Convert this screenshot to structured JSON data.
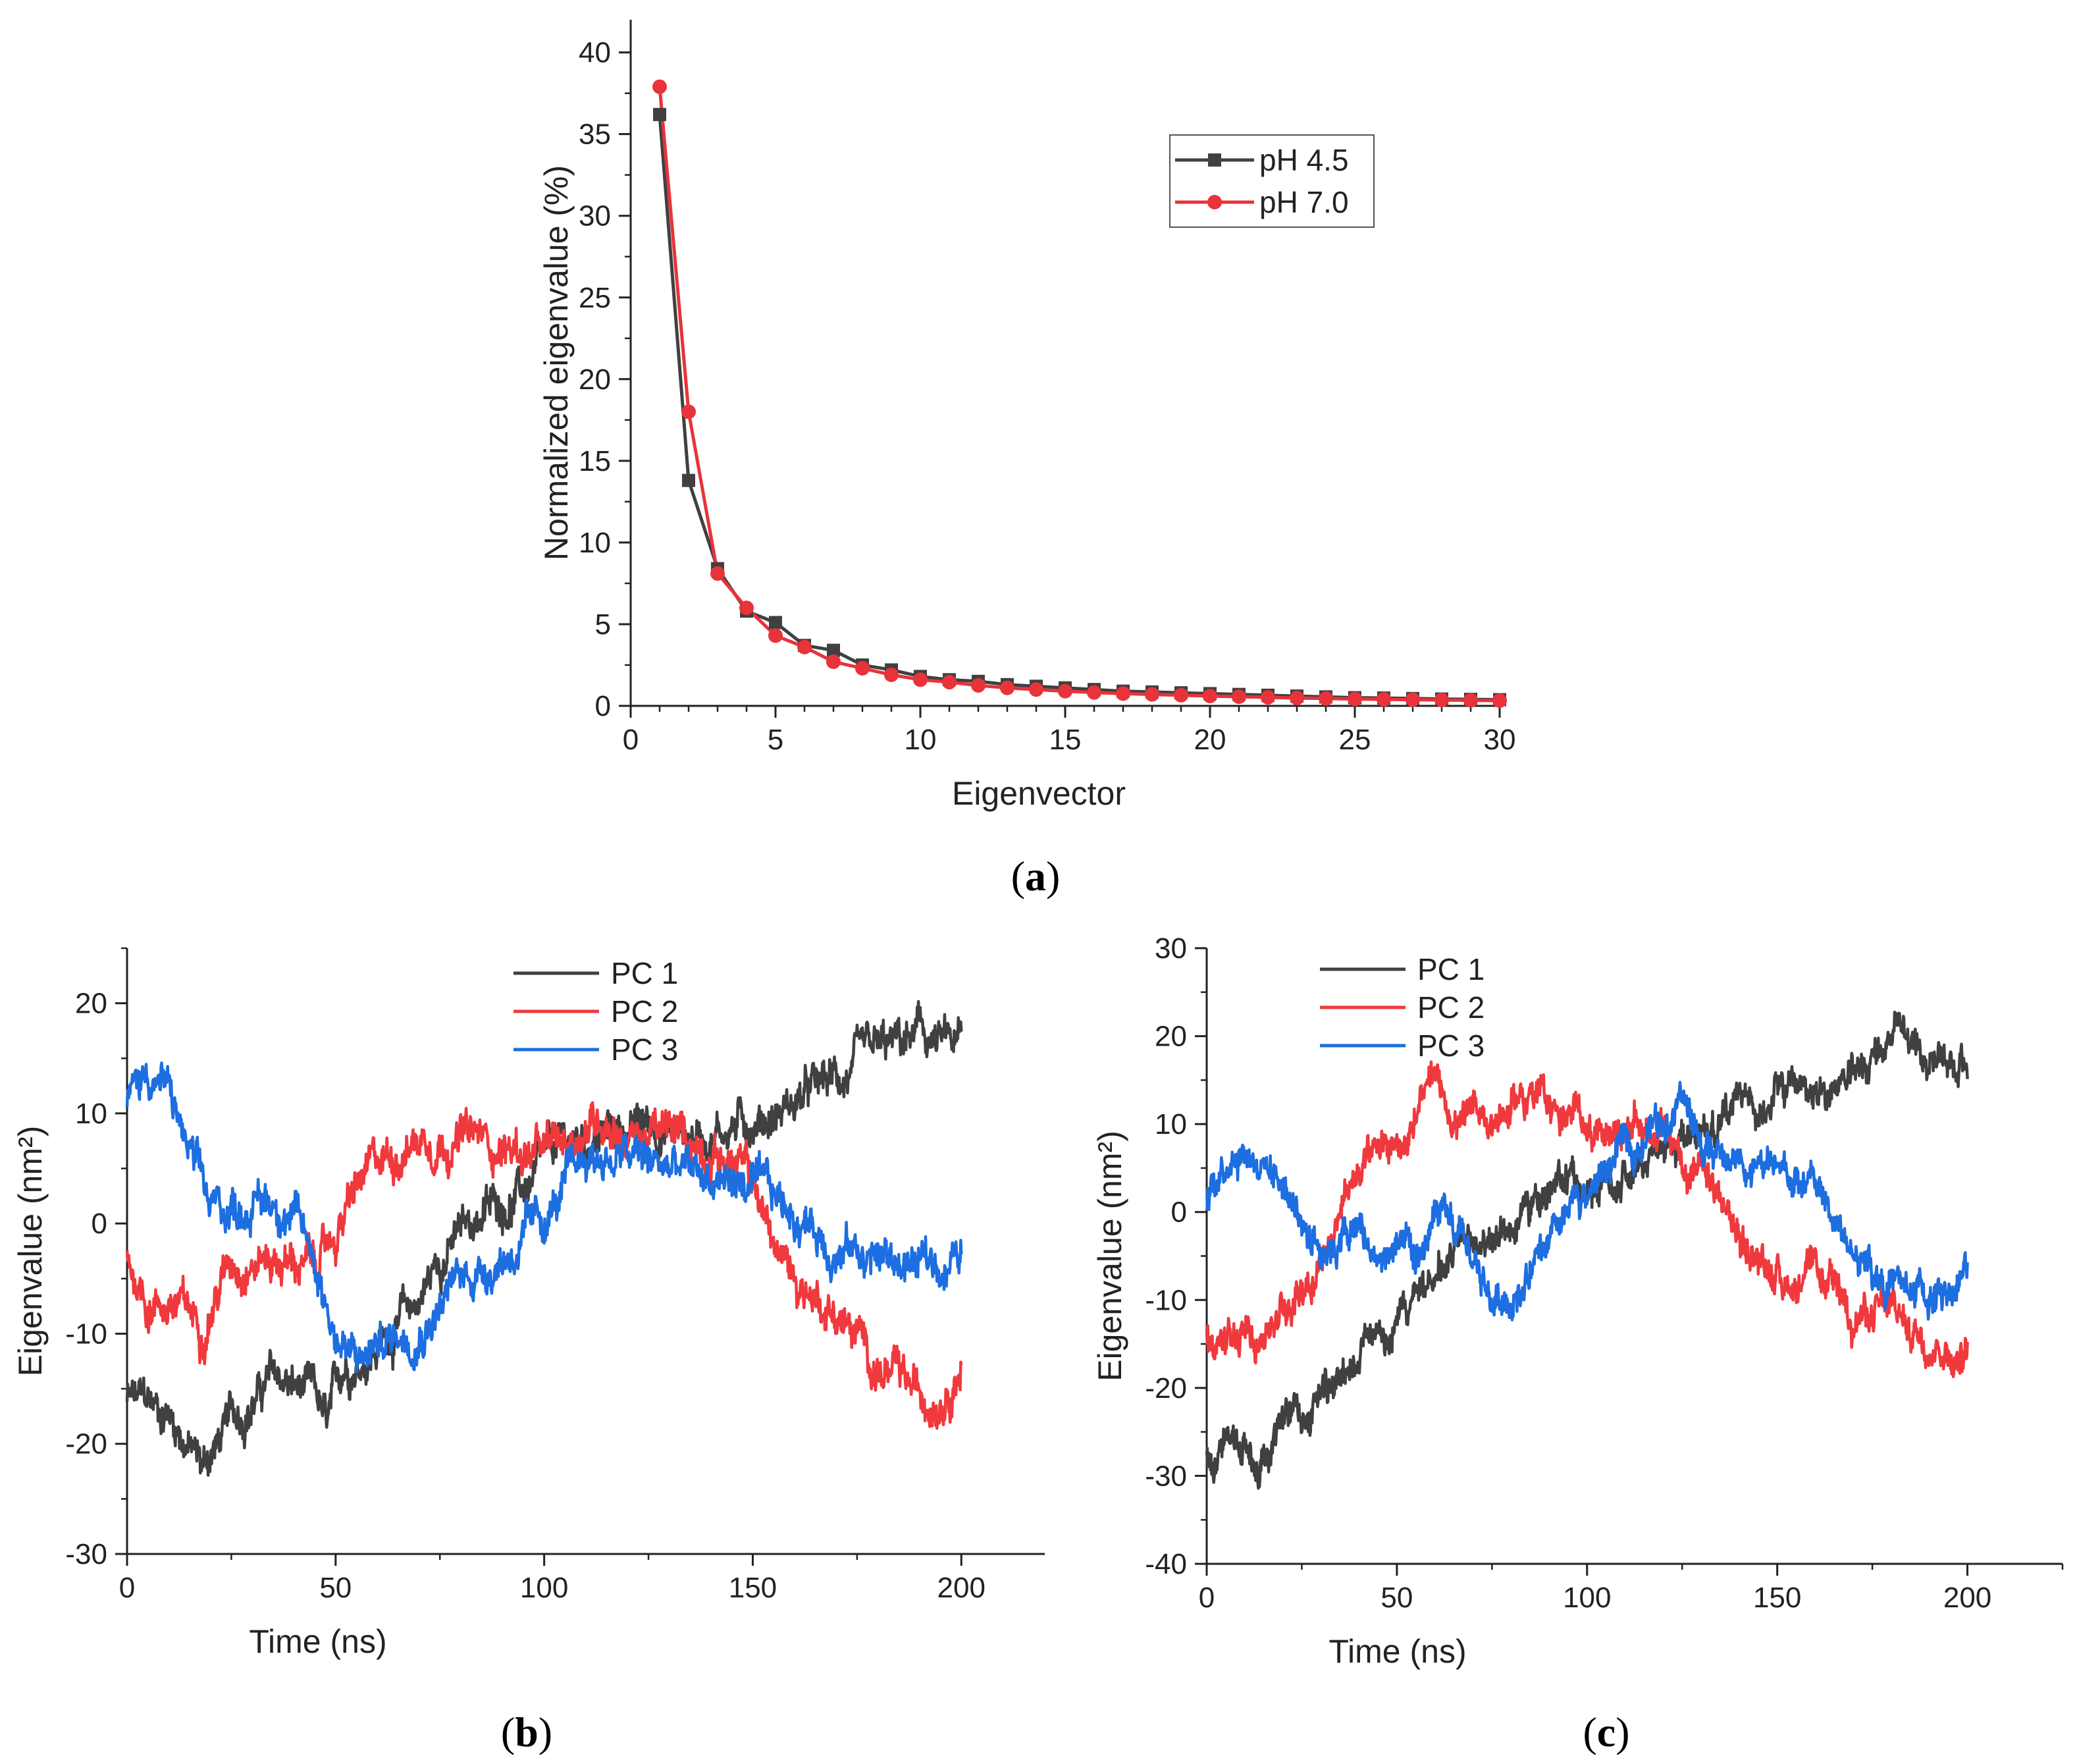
{
  "chart_data": [
    {
      "panel": "a",
      "type": "line",
      "xlabel": "Eigenvector",
      "ylabel": "Normalized eigenvalue (%)",
      "xlim": [
        0,
        30
      ],
      "ylim": [
        0,
        42
      ],
      "xticks": [
        0,
        5,
        10,
        15,
        20,
        25,
        30
      ],
      "yticks": [
        0,
        5,
        10,
        15,
        20,
        25,
        30,
        35,
        40
      ],
      "legend_position": "upper-right",
      "x": [
        1,
        2,
        3,
        4,
        5,
        6,
        7,
        8,
        9,
        10,
        11,
        12,
        13,
        14,
        15,
        16,
        17,
        18,
        19,
        20,
        21,
        22,
        23,
        24,
        25,
        26,
        27,
        28,
        29,
        30
      ],
      "series": [
        {
          "name": "pH 4.5",
          "color": "#404040",
          "marker": "square",
          "values": [
            36.2,
            13.8,
            8.4,
            5.8,
            5.1,
            3.7,
            3.4,
            2.5,
            2.2,
            1.8,
            1.6,
            1.5,
            1.3,
            1.2,
            1.1,
            1.0,
            0.9,
            0.85,
            0.8,
            0.75,
            0.7,
            0.65,
            0.6,
            0.55,
            0.5,
            0.48,
            0.45,
            0.42,
            0.4,
            0.38
          ]
        },
        {
          "name": "pH 7.0",
          "color": "#e8333a",
          "marker": "circle",
          "values": [
            37.9,
            18.0,
            8.1,
            6.0,
            4.3,
            3.6,
            2.7,
            2.3,
            1.9,
            1.6,
            1.45,
            1.25,
            1.1,
            1.0,
            0.9,
            0.82,
            0.75,
            0.7,
            0.65,
            0.6,
            0.56,
            0.52,
            0.48,
            0.45,
            0.42,
            0.4,
            0.38,
            0.36,
            0.34,
            0.32
          ]
        }
      ]
    },
    {
      "panel": "b",
      "type": "line",
      "xlabel": "Time (ns)",
      "ylabel": "Eigenvalue (nm²)",
      "xlim": [
        0,
        220
      ],
      "ylim": [
        -30,
        25
      ],
      "xticks": [
        0,
        50,
        100,
        150,
        200
      ],
      "yticks": [
        -30,
        -20,
        -10,
        0,
        10,
        20
      ],
      "legend_position": "top-center",
      "noise_amplitude": 1.6,
      "series": [
        {
          "name": "PC 1",
          "color": "#404040",
          "x": [
            0,
            10,
            18,
            25,
            35,
            45,
            48,
            52,
            60,
            70,
            75,
            85,
            95,
            105,
            115,
            125,
            135,
            145,
            155,
            165,
            175,
            185,
            190,
            195,
            200
          ],
          "y": [
            -16,
            -17,
            -22,
            -18,
            -14,
            -16,
            -19,
            -13,
            -11,
            -7,
            -3,
            1,
            3,
            7,
            8,
            9,
            8,
            9,
            10,
            12,
            14,
            16,
            17,
            16,
            16
          ]
        },
        {
          "name": "PC 2",
          "color": "#f0393d",
          "x": [
            0,
            5,
            10,
            18,
            25,
            35,
            45,
            50,
            55,
            62,
            70,
            80,
            90,
            100,
            110,
            115,
            120,
            130,
            140,
            150,
            155,
            160,
            170,
            180,
            190,
            195,
            200
          ],
          "y": [
            -3,
            -7,
            -7,
            -9,
            -3,
            -3,
            -4,
            -1,
            3,
            6,
            8,
            8,
            7,
            6,
            9,
            10,
            8,
            8,
            7,
            4,
            -2,
            -5,
            -8,
            -13,
            -16,
            -15,
            -12
          ]
        },
        {
          "name": "PC 3",
          "color": "#1d6ee0",
          "x": [
            0,
            5,
            10,
            15,
            20,
            30,
            38,
            45,
            50,
            55,
            60,
            70,
            80,
            90,
            100,
            110,
            120,
            130,
            140,
            145,
            150,
            160,
            170,
            180,
            190,
            200
          ],
          "y": [
            11,
            14,
            12,
            6,
            1,
            2,
            2,
            -3,
            -10,
            -13,
            -11,
            -9,
            -5,
            -3,
            0,
            6,
            6,
            5,
            4,
            4,
            3,
            1,
            -2,
            -3,
            -4,
            -3
          ]
        }
      ]
    },
    {
      "panel": "c",
      "type": "line",
      "xlabel": "Time (ns)",
      "ylabel": "Eigenvalue (nm²)",
      "xlim": [
        0,
        225
      ],
      "ylim": [
        -40,
        30
      ],
      "xticks": [
        0,
        50,
        100,
        150,
        200
      ],
      "yticks": [
        -40,
        -30,
        -20,
        -10,
        0,
        10,
        20,
        30
      ],
      "legend_position": "top-left",
      "noise_amplitude": 1.8,
      "series": [
        {
          "name": "PC 1",
          "color": "#404040",
          "x": [
            0,
            10,
            15,
            25,
            35,
            45,
            55,
            60,
            70,
            80,
            90,
            100,
            110,
            120,
            130,
            140,
            150,
            160,
            170,
            175,
            180,
            185,
            190,
            195,
            200
          ],
          "y": [
            -28,
            -27,
            -29,
            -23,
            -18,
            -13,
            -10,
            -7,
            -4,
            -2,
            2,
            3,
            4,
            6,
            10,
            11,
            13,
            14,
            15,
            18,
            20,
            19,
            17,
            18,
            17
          ]
        },
        {
          "name": "PC 2",
          "color": "#f0393d",
          "x": [
            0,
            10,
            20,
            30,
            35,
            40,
            50,
            60,
            65,
            70,
            80,
            85,
            90,
            100,
            110,
            120,
            125,
            130,
            140,
            150,
            160,
            170,
            180,
            190,
            200
          ],
          "y": [
            -15,
            -15,
            -11,
            -5,
            0,
            5,
            8,
            14,
            11,
            10,
            12,
            14,
            12,
            10,
            10,
            9,
            6,
            4,
            -3,
            -7,
            -8,
            -11,
            -12,
            -14,
            -16
          ]
        },
        {
          "name": "PC 3",
          "color": "#1d6ee0",
          "x": [
            0,
            5,
            10,
            20,
            25,
            30,
            40,
            45,
            50,
            55,
            60,
            65,
            70,
            75,
            80,
            90,
            100,
            110,
            120,
            125,
            130,
            140,
            150,
            160,
            165,
            170,
            180,
            190,
            200
          ],
          "y": [
            1,
            7,
            8,
            4,
            -1,
            -3,
            -2,
            -6,
            -4,
            -7,
            -1,
            -3,
            -6,
            -10,
            -9,
            -5,
            2,
            7,
            11,
            13,
            7,
            6,
            4,
            3,
            -1,
            -5,
            -8,
            -10,
            -7
          ]
        }
      ]
    }
  ],
  "panel_labels": [
    "a",
    "b",
    "c"
  ]
}
